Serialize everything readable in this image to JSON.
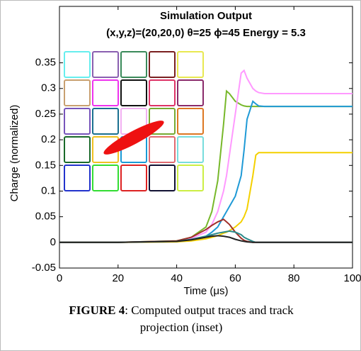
{
  "chart_data": {
    "type": "line",
    "title": "Simulation Output",
    "subtitle": "(x,y,z)=(20,20,0) θ=25 ϕ=45 Energy = 5.3",
    "xlabel": "Time (μs)",
    "ylabel": "Charge (normalized)",
    "x": [
      0,
      20,
      40,
      45,
      50,
      52,
      54,
      56,
      57,
      58,
      60,
      62,
      63,
      64,
      66,
      67,
      68,
      70,
      75,
      80,
      100
    ],
    "series": [
      {
        "color": "#77b82a",
        "values": [
          0,
          0,
          0.003,
          0.01,
          0.03,
          0.06,
          0.12,
          0.23,
          0.295,
          0.29,
          0.275,
          0.268,
          0.266,
          0.265,
          0.265,
          0.265,
          0.265,
          0.265,
          0.265,
          0.265,
          0.265
        ]
      },
      {
        "color": "#ff99ff",
        "values": [
          0,
          0,
          0.002,
          0.008,
          0.02,
          0.035,
          0.06,
          0.1,
          0.13,
          0.17,
          0.25,
          0.33,
          0.335,
          0.32,
          0.3,
          0.295,
          0.292,
          0.29,
          0.29,
          0.29,
          0.29
        ]
      },
      {
        "color": "#1f9ad6",
        "values": [
          0,
          0,
          0.002,
          0.005,
          0.012,
          0.02,
          0.03,
          0.05,
          0.06,
          0.07,
          0.09,
          0.13,
          0.18,
          0.24,
          0.275,
          0.27,
          0.266,
          0.265,
          0.265,
          0.265,
          0.265
        ]
      },
      {
        "color": "#f4d000",
        "values": [
          0,
          0,
          0.001,
          0.003,
          0.007,
          0.01,
          0.013,
          0.018,
          0.02,
          0.023,
          0.03,
          0.04,
          0.05,
          0.065,
          0.13,
          0.17,
          0.175,
          0.175,
          0.175,
          0.175,
          0.175
        ]
      },
      {
        "color": "#a0302a",
        "values": [
          0,
          0,
          0.003,
          0.01,
          0.025,
          0.033,
          0.04,
          0.045,
          0.04,
          0.035,
          0.02,
          0.008,
          0.004,
          0.002,
          0,
          0,
          0,
          0,
          0,
          0,
          0
        ]
      },
      {
        "color": "#2a8a8a",
        "values": [
          0,
          0,
          0.002,
          0.006,
          0.012,
          0.015,
          0.018,
          0.02,
          0.021,
          0.022,
          0.02,
          0.015,
          0.01,
          0.007,
          0.002,
          0,
          0,
          0,
          0,
          0,
          0
        ]
      },
      {
        "color": "#222222",
        "values": [
          0,
          0,
          0.002,
          0.005,
          0.01,
          0.012,
          0.013,
          0.012,
          0.011,
          0.01,
          0.006,
          0.003,
          0.002,
          0.001,
          0,
          0,
          0,
          0,
          0,
          0,
          0
        ]
      }
    ],
    "xlim": [
      0,
      100
    ],
    "xticks": [
      0,
      20,
      40,
      60,
      80,
      100
    ],
    "ylim": [
      -0.05,
      0.46
    ],
    "yticks": [
      -0.05,
      0,
      0.05,
      0.1,
      0.15,
      0.2,
      0.25,
      0.3,
      0.35
    ]
  },
  "caption": {
    "label": "FIGURE 4",
    "text": ": Computed output traces and track projection (inset)"
  }
}
